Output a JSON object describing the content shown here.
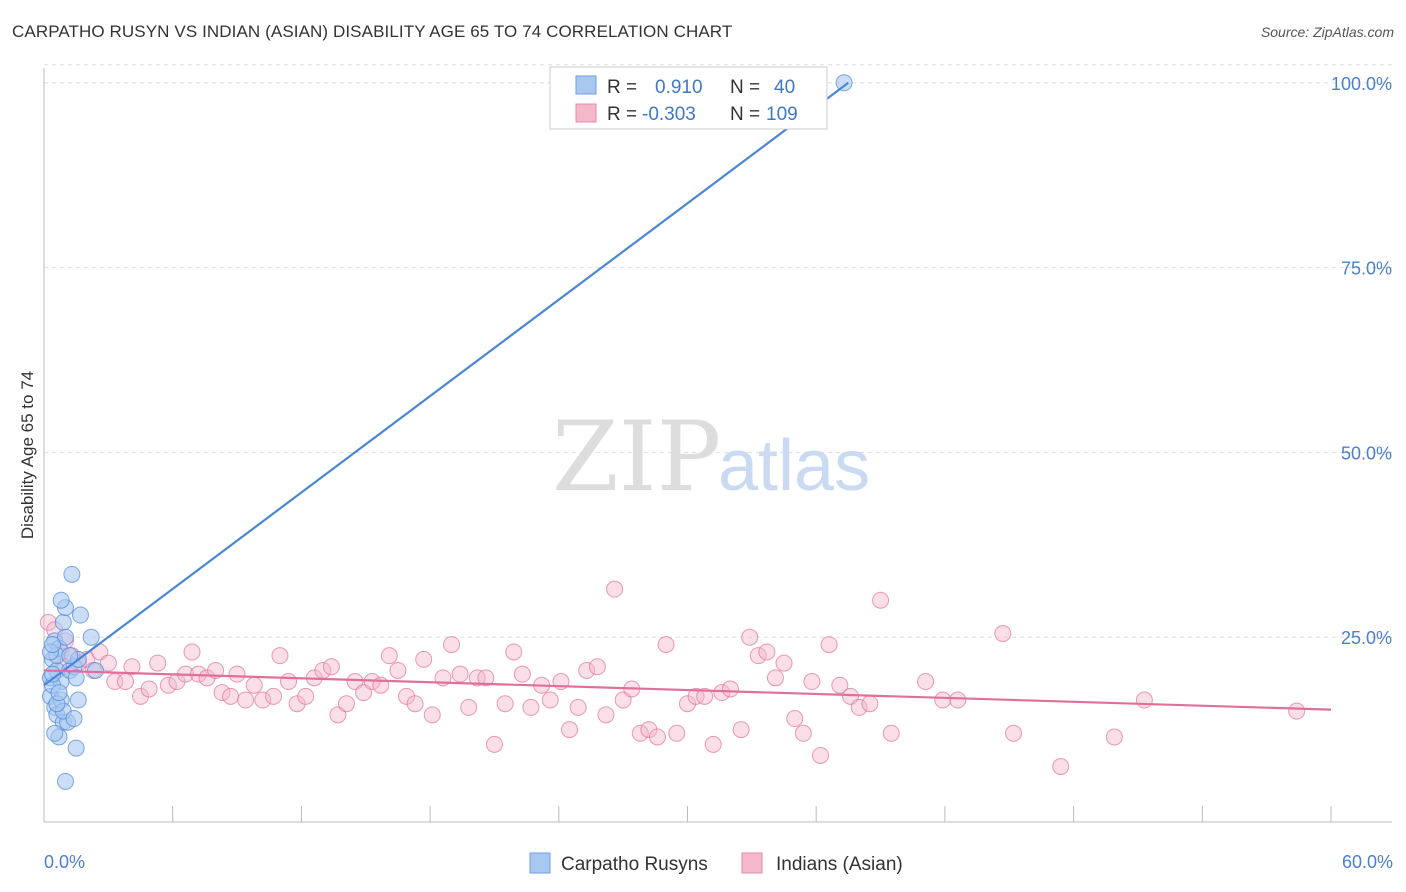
{
  "header": {
    "title": "CARPATHO RUSYN VS INDIAN (ASIAN) DISABILITY AGE 65 TO 74 CORRELATION CHART",
    "source": "Source: ZipAtlas.com"
  },
  "watermark": {
    "zip": "ZIP",
    "atlas": "atlas"
  },
  "legend": {
    "rows": [
      {
        "r_label": "R =",
        "r_value": "0.910",
        "n_label": "N =",
        "n_value": "40",
        "color": "#a9c8f0"
      },
      {
        "r_label": "R =",
        "r_value": "-0.303",
        "n_label": "N =",
        "n_value": "109",
        "color": "#f5b8cb"
      }
    ]
  },
  "bottom_legend": {
    "items": [
      {
        "label": "Carpatho Rusyns",
        "color": "#a9c8f0"
      },
      {
        "label": "Indians (Asian)",
        "color": "#f5b8cb"
      }
    ]
  },
  "chart_data": {
    "type": "scatter",
    "title": "CARPATHO RUSYN VS INDIAN (ASIAN) DISABILITY AGE 65 TO 74 CORRELATION CHART",
    "xlabel": "",
    "ylabel": "Disability Age 65 to 74",
    "xlim": [
      0,
      60
    ],
    "ylim": [
      0,
      102
    ],
    "x_tick_labels": [
      "0.0%",
      "60.0%"
    ],
    "y_ticks": [
      25,
      50,
      75,
      100
    ],
    "y_tick_labels": [
      "25.0%",
      "50.0%",
      "75.0%",
      "100.0%"
    ],
    "grid": "horizontal dashed",
    "legend_position": "top-center",
    "series": [
      {
        "name": "Carpatho Rusyns",
        "color": "#4a86d8",
        "fill": "#a9c8f0",
        "trend": {
          "x": [
            0,
            37.5
          ],
          "y": [
            18.5,
            100
          ]
        },
        "points": [
          [
            0.3,
            19.5
          ],
          [
            0.4,
            22.0
          ],
          [
            0.5,
            24.5
          ],
          [
            0.3,
            17.0
          ],
          [
            0.6,
            20.5
          ],
          [
            0.7,
            23.5
          ],
          [
            0.8,
            19.0
          ],
          [
            0.9,
            27.0
          ],
          [
            1.0,
            25.0
          ],
          [
            0.5,
            15.5
          ],
          [
            0.6,
            14.5
          ],
          [
            0.8,
            16.5
          ],
          [
            1.2,
            20.5
          ],
          [
            1.4,
            21.0
          ],
          [
            0.9,
            13.5
          ],
          [
            1.1,
            13.5
          ],
          [
            1.3,
            33.5
          ],
          [
            1.6,
            22.0
          ],
          [
            1.7,
            28.0
          ],
          [
            2.2,
            25.0
          ],
          [
            2.4,
            20.5
          ],
          [
            1.5,
            19.5
          ],
          [
            0.7,
            11.5
          ],
          [
            1.5,
            10.0
          ],
          [
            1.0,
            5.5
          ],
          [
            0.4,
            18.5
          ],
          [
            0.6,
            22.5
          ],
          [
            1.0,
            29.0
          ],
          [
            0.3,
            23.0
          ],
          [
            0.8,
            30.0
          ],
          [
            1.6,
            16.5
          ],
          [
            0.4,
            20.0
          ],
          [
            0.5,
            12.0
          ],
          [
            0.9,
            15.0
          ],
          [
            1.2,
            22.5
          ],
          [
            0.6,
            16.0
          ],
          [
            0.4,
            24.0
          ],
          [
            0.7,
            17.5
          ],
          [
            1.4,
            14.0
          ],
          [
            37.3,
            100.0
          ]
        ]
      },
      {
        "name": "Indians (Asian)",
        "color": "#e0709a",
        "fill": "#f5b8cb",
        "trend": {
          "x": [
            0,
            60
          ],
          "y": [
            20.5,
            15.2
          ]
        },
        "points": [
          [
            0.2,
            27.0
          ],
          [
            0.5,
            26.0
          ],
          [
            0.8,
            23.0
          ],
          [
            1.0,
            24.5
          ],
          [
            1.3,
            22.5
          ],
          [
            1.6,
            21.5
          ],
          [
            2.0,
            22.0
          ],
          [
            2.3,
            20.5
          ],
          [
            2.6,
            23.0
          ],
          [
            3.0,
            21.5
          ],
          [
            3.3,
            19.0
          ],
          [
            3.8,
            19.0
          ],
          [
            4.1,
            21.0
          ],
          [
            4.5,
            17.0
          ],
          [
            4.9,
            18.0
          ],
          [
            5.3,
            21.5
          ],
          [
            5.8,
            18.5
          ],
          [
            6.2,
            19.0
          ],
          [
            6.6,
            20.0
          ],
          [
            6.9,
            23.0
          ],
          [
            7.2,
            20.0
          ],
          [
            7.6,
            19.5
          ],
          [
            8.0,
            20.5
          ],
          [
            8.3,
            17.5
          ],
          [
            8.7,
            17.0
          ],
          [
            9.0,
            20.0
          ],
          [
            9.4,
            16.5
          ],
          [
            9.8,
            18.5
          ],
          [
            10.2,
            16.5
          ],
          [
            10.7,
            17.0
          ],
          [
            11.0,
            22.5
          ],
          [
            11.4,
            19.0
          ],
          [
            11.8,
            16.0
          ],
          [
            12.2,
            17.0
          ],
          [
            12.6,
            19.5
          ],
          [
            13.0,
            20.5
          ],
          [
            13.4,
            21.0
          ],
          [
            13.7,
            14.5
          ],
          [
            14.1,
            16.0
          ],
          [
            14.5,
            19.0
          ],
          [
            14.9,
            17.5
          ],
          [
            15.3,
            19.0
          ],
          [
            15.7,
            18.5
          ],
          [
            16.1,
            22.5
          ],
          [
            16.5,
            20.5
          ],
          [
            16.9,
            17.0
          ],
          [
            17.3,
            16.0
          ],
          [
            17.7,
            22.0
          ],
          [
            18.1,
            14.5
          ],
          [
            18.6,
            19.5
          ],
          [
            19.0,
            24.0
          ],
          [
            19.4,
            20.0
          ],
          [
            19.8,
            15.5
          ],
          [
            20.2,
            19.5
          ],
          [
            20.6,
            19.5
          ],
          [
            21.0,
            10.5
          ],
          [
            21.5,
            16.0
          ],
          [
            21.9,
            23.0
          ],
          [
            22.3,
            20.0
          ],
          [
            22.7,
            15.5
          ],
          [
            23.2,
            18.5
          ],
          [
            23.6,
            16.5
          ],
          [
            24.1,
            19.0
          ],
          [
            24.5,
            12.5
          ],
          [
            24.9,
            15.5
          ],
          [
            25.3,
            20.5
          ],
          [
            25.8,
            21.0
          ],
          [
            26.2,
            14.5
          ],
          [
            26.6,
            31.5
          ],
          [
            27.0,
            16.5
          ],
          [
            27.4,
            18.0
          ],
          [
            27.8,
            12.0
          ],
          [
            28.2,
            12.5
          ],
          [
            28.6,
            11.5
          ],
          [
            29.0,
            24.0
          ],
          [
            29.5,
            12.0
          ],
          [
            30.0,
            16.0
          ],
          [
            30.4,
            17.0
          ],
          [
            30.8,
            17.0
          ],
          [
            31.2,
            10.5
          ],
          [
            31.6,
            17.5
          ],
          [
            32.0,
            18.0
          ],
          [
            32.5,
            12.5
          ],
          [
            32.9,
            25.0
          ],
          [
            33.3,
            22.5
          ],
          [
            33.7,
            23.0
          ],
          [
            34.1,
            19.5
          ],
          [
            34.5,
            21.5
          ],
          [
            35.0,
            14.0
          ],
          [
            35.4,
            12.0
          ],
          [
            35.8,
            19.0
          ],
          [
            36.2,
            9.0
          ],
          [
            36.6,
            24.0
          ],
          [
            37.1,
            18.5
          ],
          [
            37.6,
            17.0
          ],
          [
            38.0,
            15.5
          ],
          [
            38.5,
            16.0
          ],
          [
            39.0,
            30.0
          ],
          [
            39.5,
            12.0
          ],
          [
            41.1,
            19.0
          ],
          [
            41.9,
            16.5
          ],
          [
            42.6,
            16.5
          ],
          [
            44.7,
            25.5
          ],
          [
            45.2,
            12.0
          ],
          [
            47.4,
            7.5
          ],
          [
            49.9,
            11.5
          ],
          [
            51.3,
            16.5
          ],
          [
            58.4,
            15.0
          ],
          [
            0.9,
            21.0
          ]
        ]
      }
    ]
  }
}
